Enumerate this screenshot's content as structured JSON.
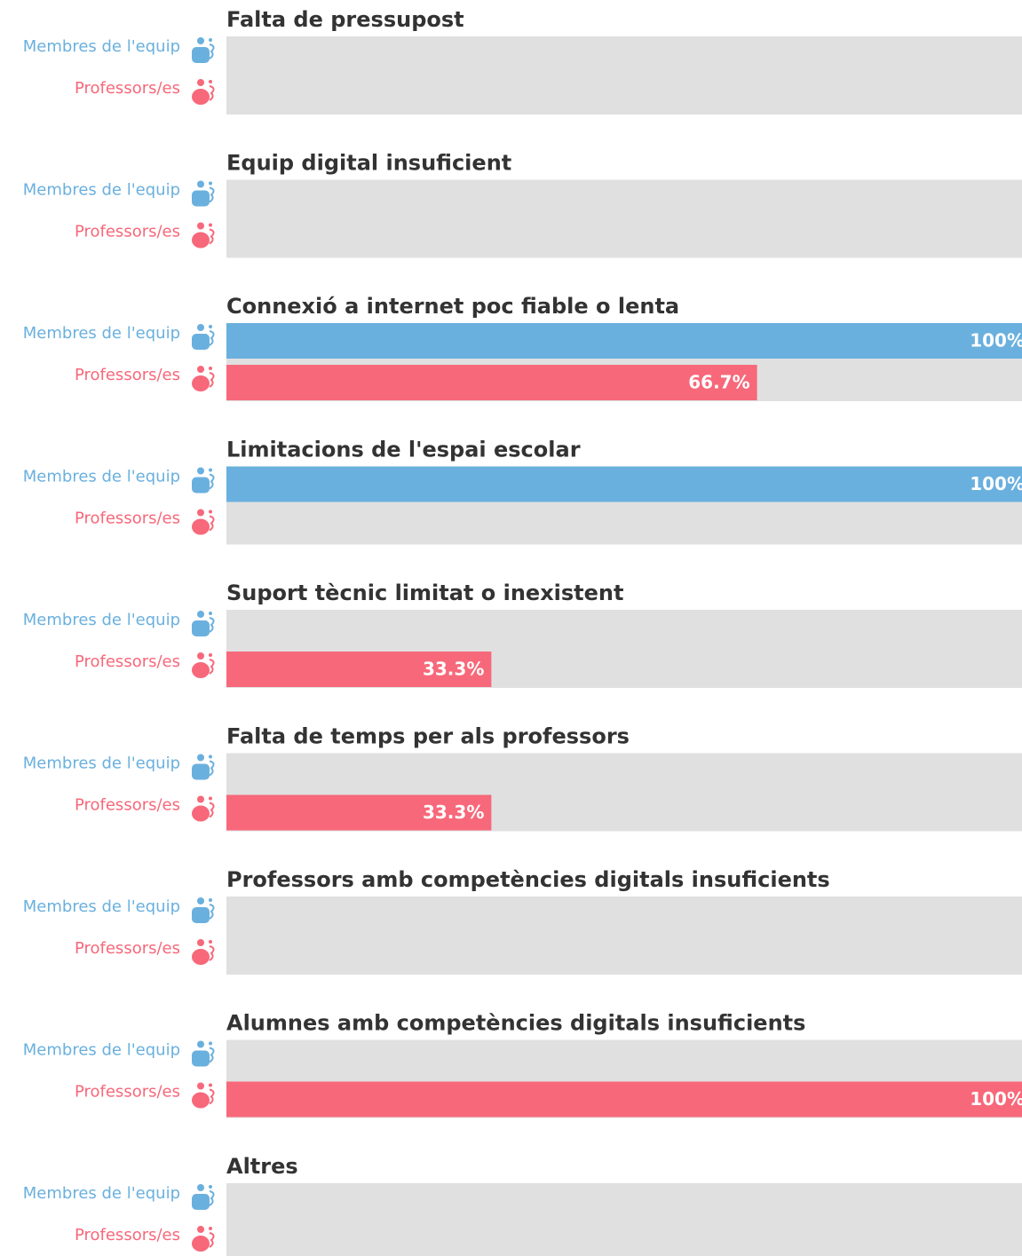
{
  "chart_data": {
    "type": "grouped-hbar",
    "categories": [
      "Falta de pressupost",
      "Equip digital insuficient",
      "Connexió a internet poc fiable o lenta",
      "Limitacions de l'espai escolar",
      "Suport tècnic limitat o inexistent",
      "Falta de temps per als professors",
      "Professors amb competències digitals insuficients",
      "Alumnes amb competències digitals insuficients",
      "Altres"
    ],
    "series": [
      {
        "name": "Membres de l'equip",
        "color": "#6ab0de",
        "values": [
          0,
          0,
          100,
          100,
          0,
          0,
          0,
          0,
          0
        ],
        "value_labels": [
          null,
          null,
          "100%",
          "100%",
          null,
          null,
          null,
          null,
          null
        ]
      },
      {
        "name": "Professors/es",
        "color": "#f7687a",
        "values": [
          0,
          0,
          66.7,
          0,
          33.3,
          33.3,
          0,
          100,
          0
        ],
        "value_labels": [
          null,
          null,
          "66.7%",
          null,
          "33.3%",
          "33.3%",
          null,
          "100%",
          null
        ]
      }
    ],
    "xlim": [
      0,
      100
    ]
  }
}
